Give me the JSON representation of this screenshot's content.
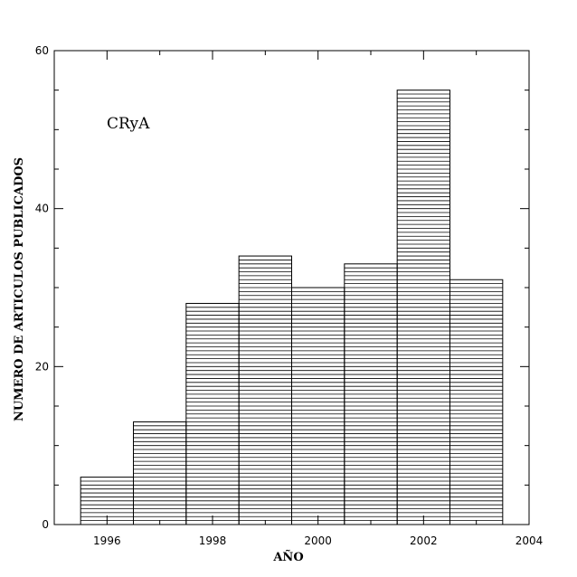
{
  "chart_data": {
    "type": "bar",
    "title": "",
    "annotation": "CRyA",
    "xlabel": "AÑO",
    "ylabel": "NUMERO DE ARTICULOS PUBLICADOS",
    "xlim": [
      1995,
      2004
    ],
    "ylim": [
      0,
      60
    ],
    "x_ticks": [
      "1996",
      "1998",
      "2000",
      "2002",
      "2004"
    ],
    "y_ticks": [
      "0",
      "20",
      "40",
      "60"
    ],
    "categories": [
      "1996",
      "1997",
      "1998",
      "1999",
      "2000",
      "2001",
      "2002",
      "2003"
    ],
    "values": [
      6,
      13,
      28,
      34,
      30,
      33,
      55,
      31
    ],
    "fill_pattern": "horizontal-hatch",
    "grid": false,
    "colors": {
      "line": "#000000",
      "background": "#ffffff"
    }
  }
}
